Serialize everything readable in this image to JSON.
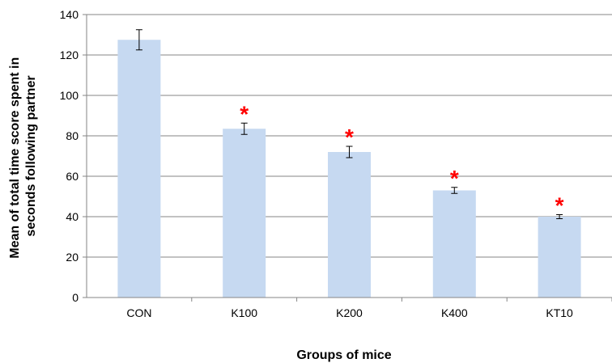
{
  "chart_data": {
    "type": "bar",
    "title": "",
    "xlabel": "Groups of mice",
    "ylabel_lines": [
      "Mean of total time score spent in",
      "seconds following partner"
    ],
    "categories": [
      "CON",
      "K100",
      "K200",
      "K400",
      "KT10"
    ],
    "values": [
      127.5,
      83.5,
      72,
      53,
      40
    ],
    "error": [
      5,
      2.8,
      2.8,
      1.5,
      1
    ],
    "significant": [
      false,
      true,
      true,
      true,
      true
    ],
    "significance_marker": "*",
    "ylim": [
      0,
      140
    ],
    "yticks": [
      0,
      20,
      40,
      60,
      80,
      100,
      120,
      140
    ],
    "grid": true,
    "colors": {
      "bar": "#c6d9f1",
      "grid": "#868686",
      "axis": "#868686",
      "marker": "#ff0000",
      "text": "#000000"
    }
  }
}
